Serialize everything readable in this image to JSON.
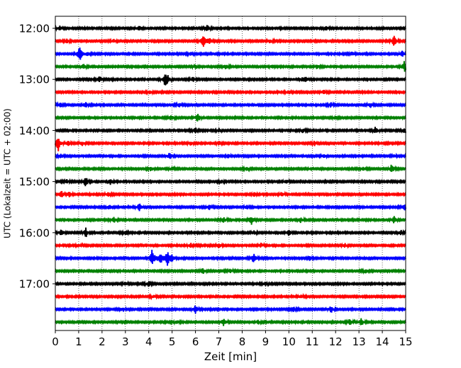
{
  "chart_data": {
    "type": "line",
    "title": "",
    "xlabel": "Zeit  [min]",
    "ylabel": "UTC (Lokalzeit = UTC + 02:00)",
    "xlim": [
      0,
      15
    ],
    "x_ticks": [
      "0",
      "1",
      "2",
      "3",
      "4",
      "5",
      "6",
      "7",
      "8",
      "9",
      "10",
      "11",
      "12",
      "13",
      "14",
      "15"
    ],
    "y_ticks": [
      "12:00",
      "13:00",
      "14:00",
      "15:00",
      "16:00",
      "17:00"
    ],
    "grid": {
      "x": true,
      "y": false,
      "style": "dotted"
    },
    "trace_start_labels": [
      "12:00",
      "12:15",
      "12:30",
      "12:45",
      "13:00",
      "13:15",
      "13:30",
      "13:45",
      "14:00",
      "14:15",
      "14:30",
      "14:45",
      "15:00",
      "15:15",
      "15:30",
      "15:45",
      "16:00",
      "16:15",
      "16:30",
      "16:45",
      "17:00",
      "17:15",
      "17:30",
      "17:45"
    ],
    "trace_color_cycle": [
      "#000000",
      "#ff0000",
      "#0000ff",
      "#008000"
    ],
    "trace_events": [
      [
        [
          0.2,
          0.35
        ],
        [
          3.6,
          0.45
        ],
        [
          6.5,
          0.5
        ],
        [
          11.6,
          0.35
        ]
      ],
      [
        [
          0.5,
          0.3
        ],
        [
          2.5,
          0.3
        ],
        [
          6.35,
          1.3
        ],
        [
          6.6,
          0.6
        ],
        [
          9.2,
          0.4
        ],
        [
          14.5,
          0.8
        ]
      ],
      [
        [
          1.05,
          1.2
        ],
        [
          1.4,
          0.4
        ],
        [
          5.8,
          0.35
        ],
        [
          12.7,
          0.35
        ],
        [
          14.85,
          0.45
        ]
      ],
      [
        [
          1.2,
          0.45
        ],
        [
          6.0,
          0.3
        ],
        [
          7.3,
          0.35
        ],
        [
          9.3,
          0.3
        ],
        [
          11.2,
          0.3
        ],
        [
          14.95,
          0.9
        ]
      ],
      [
        [
          1.9,
          0.55
        ],
        [
          4.7,
          0.9
        ],
        [
          4.8,
          0.65
        ],
        [
          5.9,
          0.35
        ],
        [
          10.6,
          0.4
        ],
        [
          10.75,
          0.35
        ]
      ],
      [
        [
          4.05,
          0.3
        ],
        [
          10.0,
          0.3
        ],
        [
          11.5,
          0.4
        ]
      ],
      [
        [
          1.3,
          0.5
        ],
        [
          0.2,
          0.4
        ],
        [
          5.3,
          0.35
        ],
        [
          11.8,
          0.35
        ],
        [
          13.5,
          0.35
        ]
      ],
      [
        [
          4.95,
          0.45
        ],
        [
          6.1,
          0.7
        ],
        [
          12.0,
          0.3
        ]
      ],
      [
        [
          6.0,
          0.4
        ],
        [
          7.0,
          0.35
        ],
        [
          10.6,
          0.35
        ],
        [
          13.7,
          0.5
        ],
        [
          14.95,
          0.5
        ]
      ],
      [
        [
          0.12,
          1.4
        ],
        [
          0.55,
          0.4
        ],
        [
          1.15,
          0.35
        ],
        [
          5.8,
          0.35
        ],
        [
          7.0,
          0.35
        ],
        [
          11.1,
          0.35
        ]
      ],
      [
        [
          0.25,
          0.35
        ],
        [
          4.9,
          0.55
        ],
        [
          7.4,
          0.3
        ],
        [
          11.5,
          0.3
        ],
        [
          14.5,
          0.3
        ]
      ],
      [
        [
          4.1,
          0.4
        ],
        [
          5.0,
          0.3
        ],
        [
          8.2,
          0.3
        ],
        [
          13.2,
          0.3
        ],
        [
          14.4,
          0.75
        ]
      ],
      [
        [
          1.3,
          0.85
        ],
        [
          2.35,
          0.55
        ],
        [
          0.5,
          0.3
        ],
        [
          7.1,
          0.3
        ],
        [
          9.9,
          0.3
        ]
      ],
      [
        [
          0.25,
          0.6
        ],
        [
          0.6,
          0.5
        ],
        [
          2.25,
          0.35
        ],
        [
          8.5,
          0.35
        ],
        [
          9.7,
          0.35
        ]
      ],
      [
        [
          2.3,
          0.4
        ],
        [
          3.6,
          0.6
        ],
        [
          6.6,
          0.45
        ],
        [
          8.2,
          0.35
        ],
        [
          14.95,
          0.45
        ]
      ],
      [
        [
          2.5,
          0.5
        ],
        [
          7.2,
          0.4
        ],
        [
          8.4,
          0.75
        ],
        [
          10.5,
          0.4
        ],
        [
          14.5,
          0.6
        ]
      ],
      [
        [
          0.25,
          0.5
        ],
        [
          1.3,
          0.8
        ],
        [
          3.0,
          0.3
        ],
        [
          8.5,
          0.3
        ],
        [
          10.0,
          0.45
        ],
        [
          14.8,
          0.35
        ]
      ],
      [
        [
          1.0,
          0.3
        ],
        [
          5.8,
          0.3
        ],
        [
          7.0,
          0.35
        ],
        [
          8.8,
          0.35
        ],
        [
          12.4,
          0.35
        ]
      ],
      [
        [
          4.15,
          1.5
        ],
        [
          4.5,
          1.0
        ],
        [
          4.8,
          1.2
        ],
        [
          5.0,
          0.6
        ],
        [
          8.5,
          0.85
        ],
        [
          10.9,
          0.35
        ]
      ],
      [
        [
          6.3,
          0.6
        ],
        [
          7.5,
          0.3
        ],
        [
          13.3,
          0.35
        ]
      ],
      [
        [
          3.0,
          0.3
        ],
        [
          4.0,
          0.45
        ],
        [
          9.0,
          0.3
        ]
      ],
      [
        [
          4.2,
          0.25
        ],
        [
          10.5,
          0.25
        ]
      ],
      [
        [
          2.9,
          0.35
        ],
        [
          6.0,
          0.65
        ],
        [
          10.2,
          0.4
        ],
        [
          11.8,
          0.55
        ]
      ],
      [
        [
          5.2,
          0.3
        ],
        [
          7.2,
          0.6
        ],
        [
          8.7,
          0.35
        ],
        [
          12.6,
          0.5
        ],
        [
          13.1,
          0.55
        ]
      ]
    ]
  }
}
